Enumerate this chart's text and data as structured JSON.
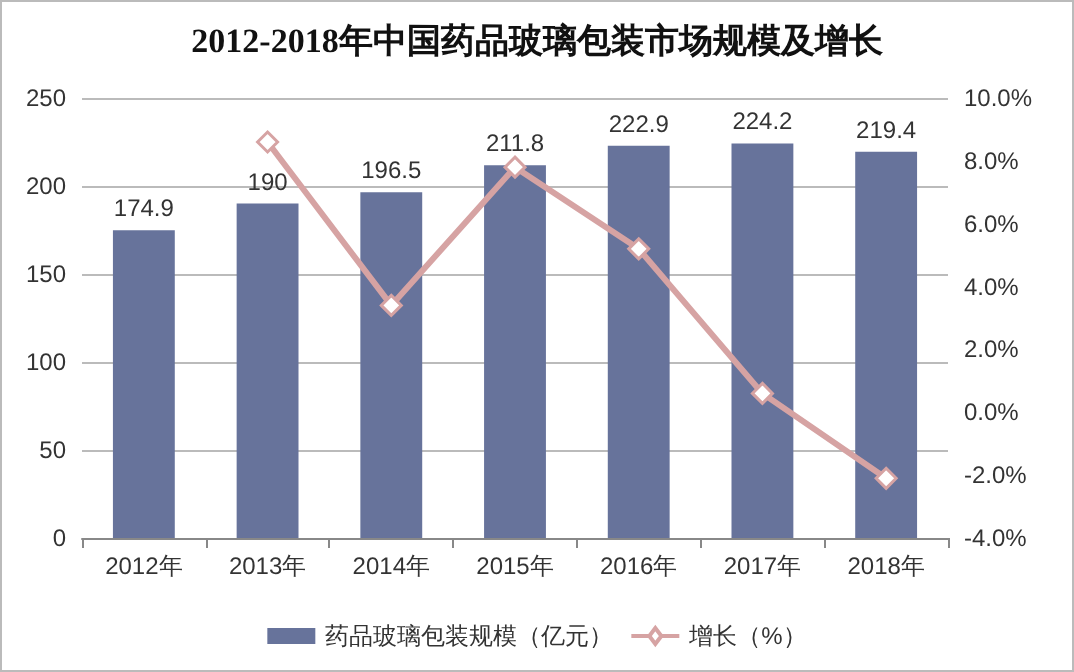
{
  "chart_data": {
    "type": "bar",
    "title": "2012-2018年中国药品玻璃包装市场规模及增长",
    "categories": [
      "2012年",
      "2013年",
      "2014年",
      "2015年",
      "2016年",
      "2017年",
      "2018年"
    ],
    "series": [
      {
        "name": "药品玻璃包装规模（亿元）",
        "color": "#67739b",
        "values": [
          174.9,
          190,
          196.5,
          211.8,
          222.9,
          224.2,
          219.4
        ],
        "data_labels": true
      },
      {
        "name": "增长（%）",
        "type": "line",
        "axis": "y2",
        "color": "#d6a3a3",
        "marker": "diamond",
        "values": [
          null,
          8.6,
          3.4,
          7.8,
          5.2,
          0.6,
          -2.1
        ]
      }
    ],
    "ylim": [
      0,
      250
    ],
    "yticks": [
      0,
      50,
      100,
      150,
      200,
      250
    ],
    "y2lim": [
      -4,
      10
    ],
    "y2ticks": [
      {
        "value": -4,
        "label": "-4.0%"
      },
      {
        "value": -2,
        "label": "-2.0%"
      },
      {
        "value": 0,
        "label": "0.0%"
      },
      {
        "value": 2,
        "label": "2.0%"
      },
      {
        "value": 4,
        "label": "4.0%"
      },
      {
        "value": 6,
        "label": "6.0%"
      },
      {
        "value": 8,
        "label": "8.0%"
      },
      {
        "value": 10,
        "label": "10.0%"
      }
    ],
    "grid": "y",
    "legend": "bottom"
  }
}
